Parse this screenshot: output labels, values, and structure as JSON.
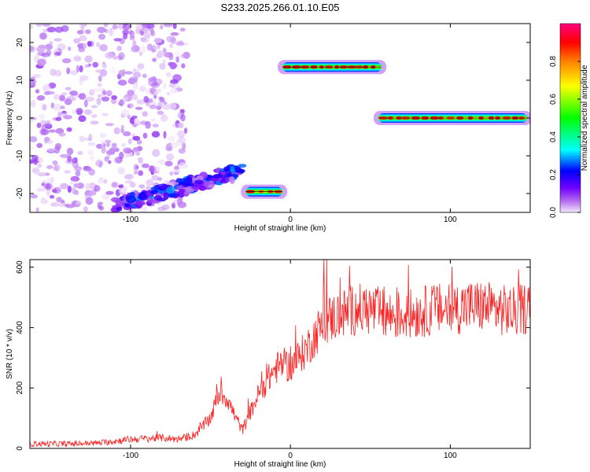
{
  "title": "S233.2025.266.01.10.E05",
  "chart_data": [
    {
      "type": "heatmap",
      "xlabel": "Height of straight line (km)",
      "ylabel": "Frequency (Hz)",
      "xlim": [
        -163,
        150
      ],
      "ylim": [
        -25,
        25
      ],
      "x_ticks": [
        -100,
        0,
        100
      ],
      "y_ticks": [
        -20,
        -10,
        0,
        10,
        20
      ],
      "colorbar": {
        "label": "Normalized spectral amplitude",
        "range": [
          0,
          1
        ],
        "ticks": [
          0.0,
          0.2,
          0.4,
          0.6,
          0.8
        ],
        "colormap": [
          "#f3e8fb",
          "#b46cf0",
          "#7000ff",
          "#0000ff",
          "#00ffff",
          "#00ff00",
          "#ffff00",
          "#ff8000",
          "#ff0000",
          "#ff0080"
        ]
      },
      "features": [
        {
          "x_range": [
            -163,
            -65
          ],
          "freq_range": [
            -25,
            25
          ],
          "amplitude": 0.1
        },
        {
          "x_range": [
            -110,
            -30
          ],
          "freq_range": [
            -25,
            -12
          ],
          "amplitude": 0.3
        },
        {
          "x_range": [
            -28,
            -5
          ],
          "freq_range": [
            -20,
            -19
          ],
          "amplitude": 0.85
        },
        {
          "x_range": [
            -5,
            57
          ],
          "freq_range": [
            13,
            14
          ],
          "amplitude": 0.8
        },
        {
          "x_range": [
            55,
            148
          ],
          "freq_range": [
            0,
            0
          ],
          "amplitude": 0.95
        }
      ]
    },
    {
      "type": "line",
      "xlabel": "Height of straight line (km)",
      "ylabel": "SNR (10 * v/v)",
      "xlim": [
        -163,
        150
      ],
      "ylim": [
        0,
        625
      ],
      "x_ticks": [
        -100,
        0,
        100
      ],
      "y_ticks": [
        0,
        200,
        400,
        600
      ],
      "grid": false,
      "series": [
        {
          "color": "#ff2020",
          "x": [
            -163,
            -140,
            -120,
            -100,
            -80,
            -70,
            -60,
            -50,
            -45,
            -40,
            -35,
            -30,
            -25,
            -20,
            -15,
            -10,
            -5,
            0,
            5,
            10,
            15,
            20,
            25,
            30,
            35,
            40,
            50,
            60,
            70,
            80,
            90,
            100,
            110,
            120,
            130,
            140,
            150
          ],
          "y": [
            15,
            15,
            18,
            30,
            35,
            30,
            45,
            100,
            180,
            170,
            110,
            60,
            120,
            180,
            220,
            260,
            280,
            270,
            300,
            330,
            370,
            410,
            430,
            440,
            450,
            460,
            460,
            440,
            440,
            450,
            460,
            460,
            470,
            470,
            460,
            450,
            470
          ]
        }
      ]
    }
  ]
}
